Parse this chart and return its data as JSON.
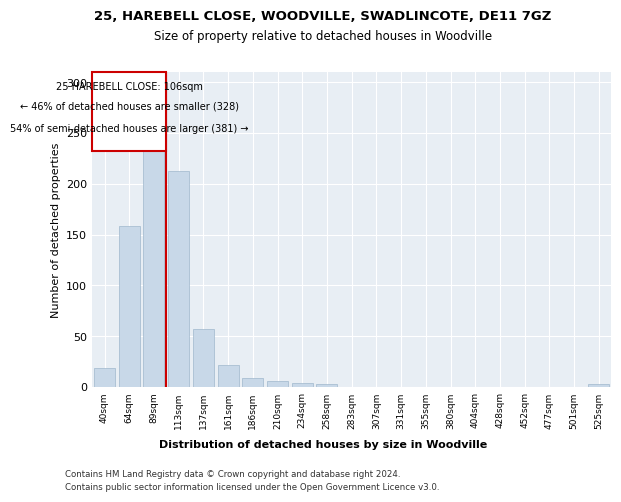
{
  "title1": "25, HAREBELL CLOSE, WOODVILLE, SWADLINCOTE, DE11 7GZ",
  "title2": "Size of property relative to detached houses in Woodville",
  "xlabel": "Distribution of detached houses by size in Woodville",
  "ylabel": "Number of detached properties",
  "categories": [
    "40sqm",
    "64sqm",
    "89sqm",
    "113sqm",
    "137sqm",
    "161sqm",
    "186sqm",
    "210sqm",
    "234sqm",
    "258sqm",
    "283sqm",
    "307sqm",
    "331sqm",
    "355sqm",
    "380sqm",
    "404sqm",
    "428sqm",
    "452sqm",
    "477sqm",
    "501sqm",
    "525sqm"
  ],
  "values": [
    19,
    158,
    234,
    213,
    57,
    22,
    9,
    6,
    4,
    3,
    0,
    0,
    0,
    0,
    0,
    0,
    0,
    0,
    0,
    0,
    3
  ],
  "bar_color": "#c8d8e8",
  "bar_edgecolor": "#a0b8cc",
  "vline_x": 2.5,
  "annotation_title": "25 HAREBELL CLOSE: 106sqm",
  "annotation_line1": "← 46% of detached houses are smaller (328)",
  "annotation_line2": "54% of semi-detached houses are larger (381) →",
  "annotation_box_color": "#ffffff",
  "annotation_box_edgecolor": "#cc0000",
  "vline_color": "#cc0000",
  "ylim": [
    0,
    310
  ],
  "background_color": "#e8eef4",
  "footer1": "Contains HM Land Registry data © Crown copyright and database right 2024.",
  "footer2": "Contains public sector information licensed under the Open Government Licence v3.0."
}
